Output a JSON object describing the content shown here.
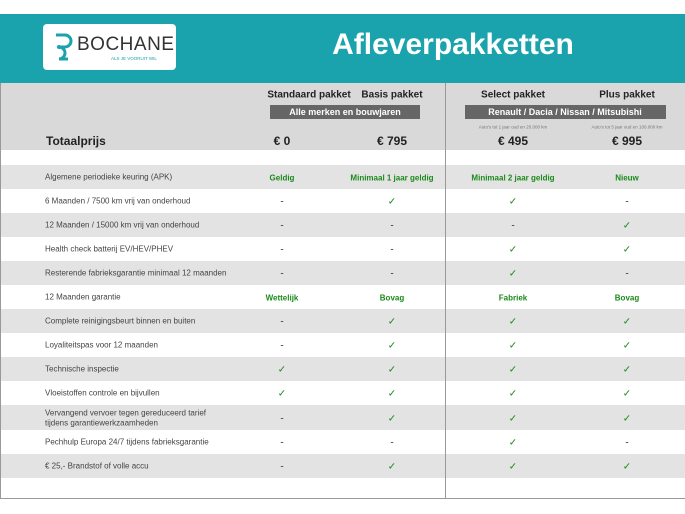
{
  "header": {
    "logo": "BOCHANE",
    "tagline": "ALS JE VOORUIT WIL",
    "title": "Afleverpakketten"
  },
  "packages": [
    {
      "name": "Standaard pakket"
    },
    {
      "name": "Basis pakket"
    },
    {
      "name": "Select pakket",
      "note": "Auto's tot 1 jaar oud en 20.000 km"
    },
    {
      "name": "Plus pakket",
      "note": "Auto's tot 5 jaar oud en 100.000 km"
    }
  ],
  "groups": [
    "Alle merken en bouwjaren",
    "Renault / Dacia / Nissan / Mitsubishi"
  ],
  "total_label": "Totaalprijs",
  "prices": [
    "€ 0",
    "€ 795",
    "€ 495",
    "€ 995"
  ],
  "rows": [
    {
      "label": [
        "Algemene periodieke keuring (APK)"
      ],
      "cells": [
        "Geldig",
        "Minimaal 1 jaar geldig",
        "Minimaal 2 jaar geldig",
        "Nieuw"
      ]
    },
    {
      "label": [
        "6 Maanden / 7500 km vrij van onderhoud"
      ],
      "cells": [
        "-",
        "✓",
        "✓",
        "-"
      ]
    },
    {
      "label": [
        "12 Maanden / 15000 km vrij van onderhoud"
      ],
      "cells": [
        "-",
        "-",
        "-",
        "✓"
      ]
    },
    {
      "label": [
        "Health check batterij EV/HEV/PHEV"
      ],
      "cells": [
        "-",
        "-",
        "✓",
        "✓"
      ]
    },
    {
      "label": [
        "Resterende fabrieksgarantie minimaal 12 maanden"
      ],
      "cells": [
        "-",
        "-",
        "✓",
        "-"
      ]
    },
    {
      "label": [
        "12 Maanden  garantie"
      ],
      "cells": [
        "Wettelijk",
        "Bovag",
        "Fabriek",
        "Bovag"
      ]
    },
    {
      "label": [
        "Complete reinigingsbeurt binnen en buiten"
      ],
      "cells": [
        "-",
        "✓",
        "✓",
        "✓"
      ]
    },
    {
      "label": [
        "Loyaliteitspas voor 12 maanden"
      ],
      "cells": [
        "-",
        "✓",
        "✓",
        "✓"
      ]
    },
    {
      "label": [
        "Technische inspectie"
      ],
      "cells": [
        "✓",
        "✓",
        "✓",
        "✓"
      ]
    },
    {
      "label": [
        "Vloeistoffen controle en bijvullen"
      ],
      "cells": [
        "✓",
        "✓",
        "✓",
        "✓"
      ]
    },
    {
      "label": [
        "Vervangend vervoer tegen gereduceerd tarief",
        "tijdens garantiewerkzaamheden"
      ],
      "cells": [
        "-",
        "✓",
        "✓",
        "✓"
      ]
    },
    {
      "label": [
        "Pechhulp Europa 24/7 tijdens fabrieksgarantie"
      ],
      "cells": [
        "-",
        "-",
        "✓",
        "-"
      ]
    },
    {
      "label": [
        "€ 25,- Brandstof of  volle accu"
      ],
      "cells": [
        "-",
        "✓",
        "✓",
        "✓"
      ]
    }
  ]
}
